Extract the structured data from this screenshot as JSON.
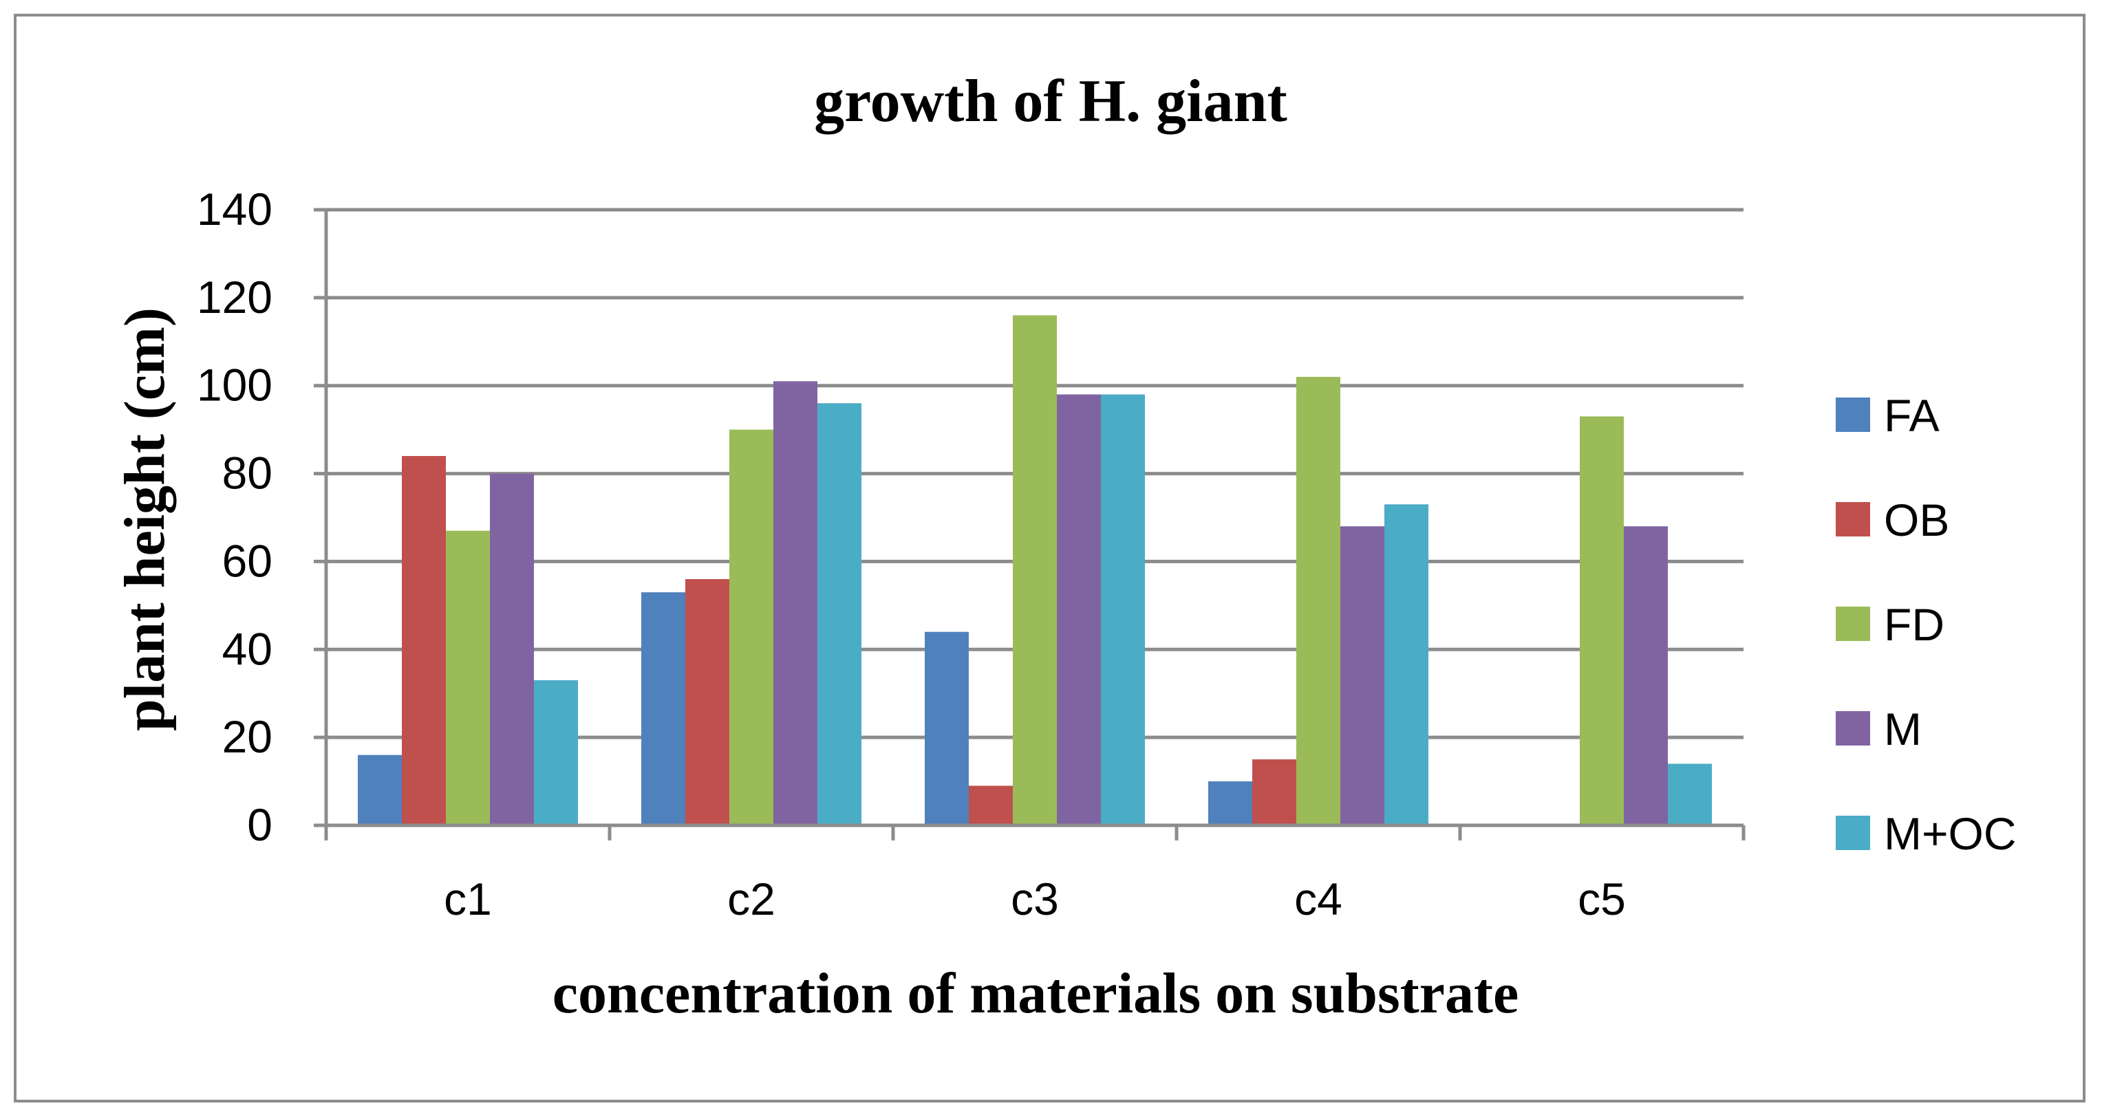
{
  "chart_data": {
    "type": "bar",
    "title": "growth of H. giant",
    "xlabel": "concentration of materials on substrate",
    "ylabel": "plant height (cm)",
    "categories": [
      "c1",
      "c2",
      "c3",
      "c4",
      "c5"
    ],
    "ylim": [
      0,
      140
    ],
    "yticks": [
      0,
      20,
      40,
      60,
      80,
      100,
      120,
      140
    ],
    "grid": true,
    "legend_position": "right",
    "series": [
      {
        "name": "FA",
        "color": "#4F81BD",
        "values": [
          16,
          53,
          44,
          10,
          0
        ]
      },
      {
        "name": "OB",
        "color": "#C0504D",
        "values": [
          84,
          56,
          9,
          15,
          0
        ]
      },
      {
        "name": "FD",
        "color": "#9BBB59",
        "values": [
          67,
          90,
          116,
          102,
          93
        ]
      },
      {
        "name": "M",
        "color": "#8064A2",
        "values": [
          80,
          101,
          98,
          68,
          68
        ]
      },
      {
        "name": "M+OC",
        "color": "#4BACC6",
        "values": [
          33,
          96,
          98,
          73,
          14
        ]
      }
    ]
  }
}
